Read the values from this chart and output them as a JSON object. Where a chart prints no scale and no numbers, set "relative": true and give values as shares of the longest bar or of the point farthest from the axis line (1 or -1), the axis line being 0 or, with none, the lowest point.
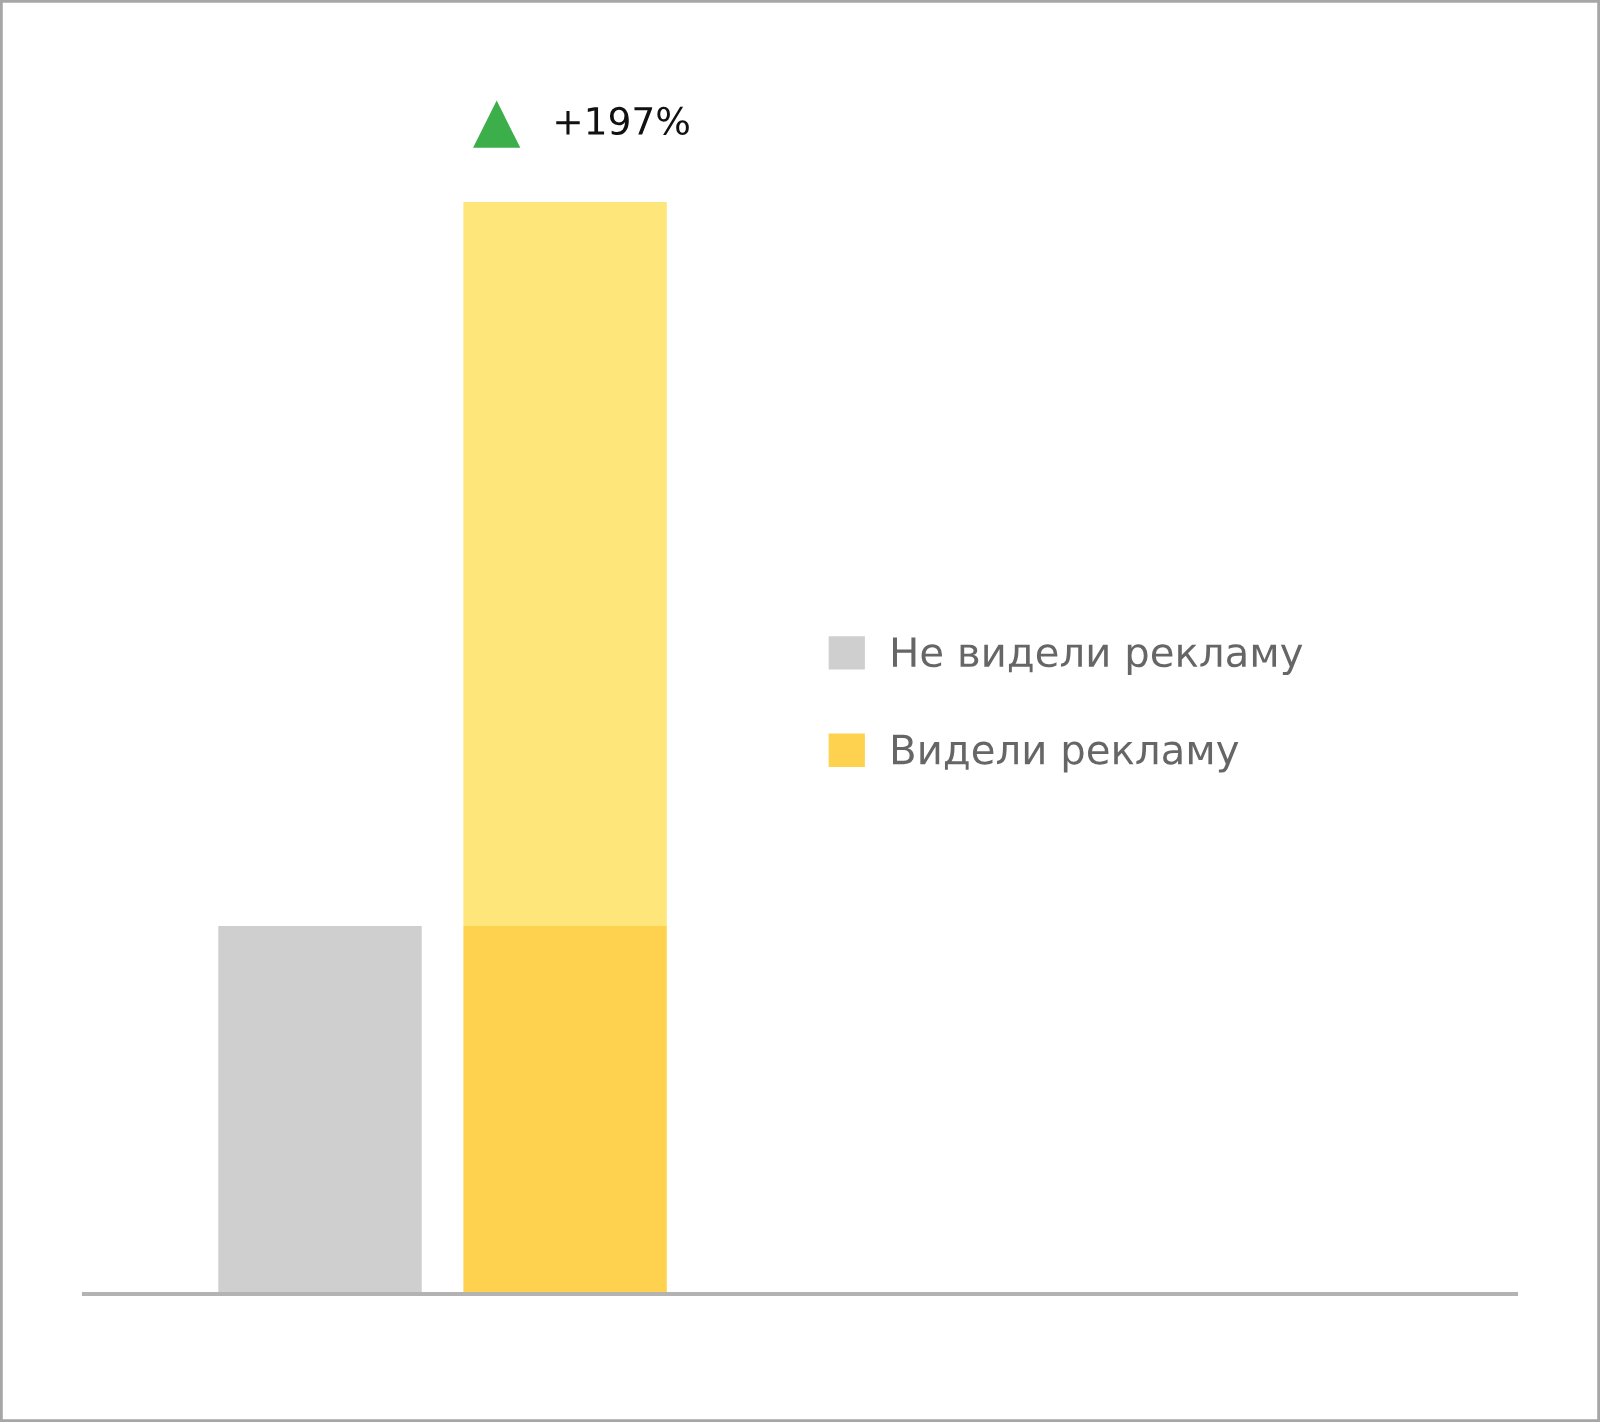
{
  "chart_data": {
    "type": "bar",
    "relative": true,
    "stacked": true,
    "categories": [
      null,
      null
    ],
    "series": [
      {
        "name": "Не видели рекламу",
        "color": "#cfcfcf",
        "values": [
          0.337,
          null
        ]
      },
      {
        "name": "Видели рекламу",
        "color": "#fed24e",
        "values": [
          null,
          0.337
        ]
      },
      {
        "color": "#fee67b",
        "values": [
          null,
          0.663
        ]
      }
    ],
    "annotations": [
      {
        "text": "+197%",
        "y": 1
      }
    ],
    "legend": "right"
  }
}
